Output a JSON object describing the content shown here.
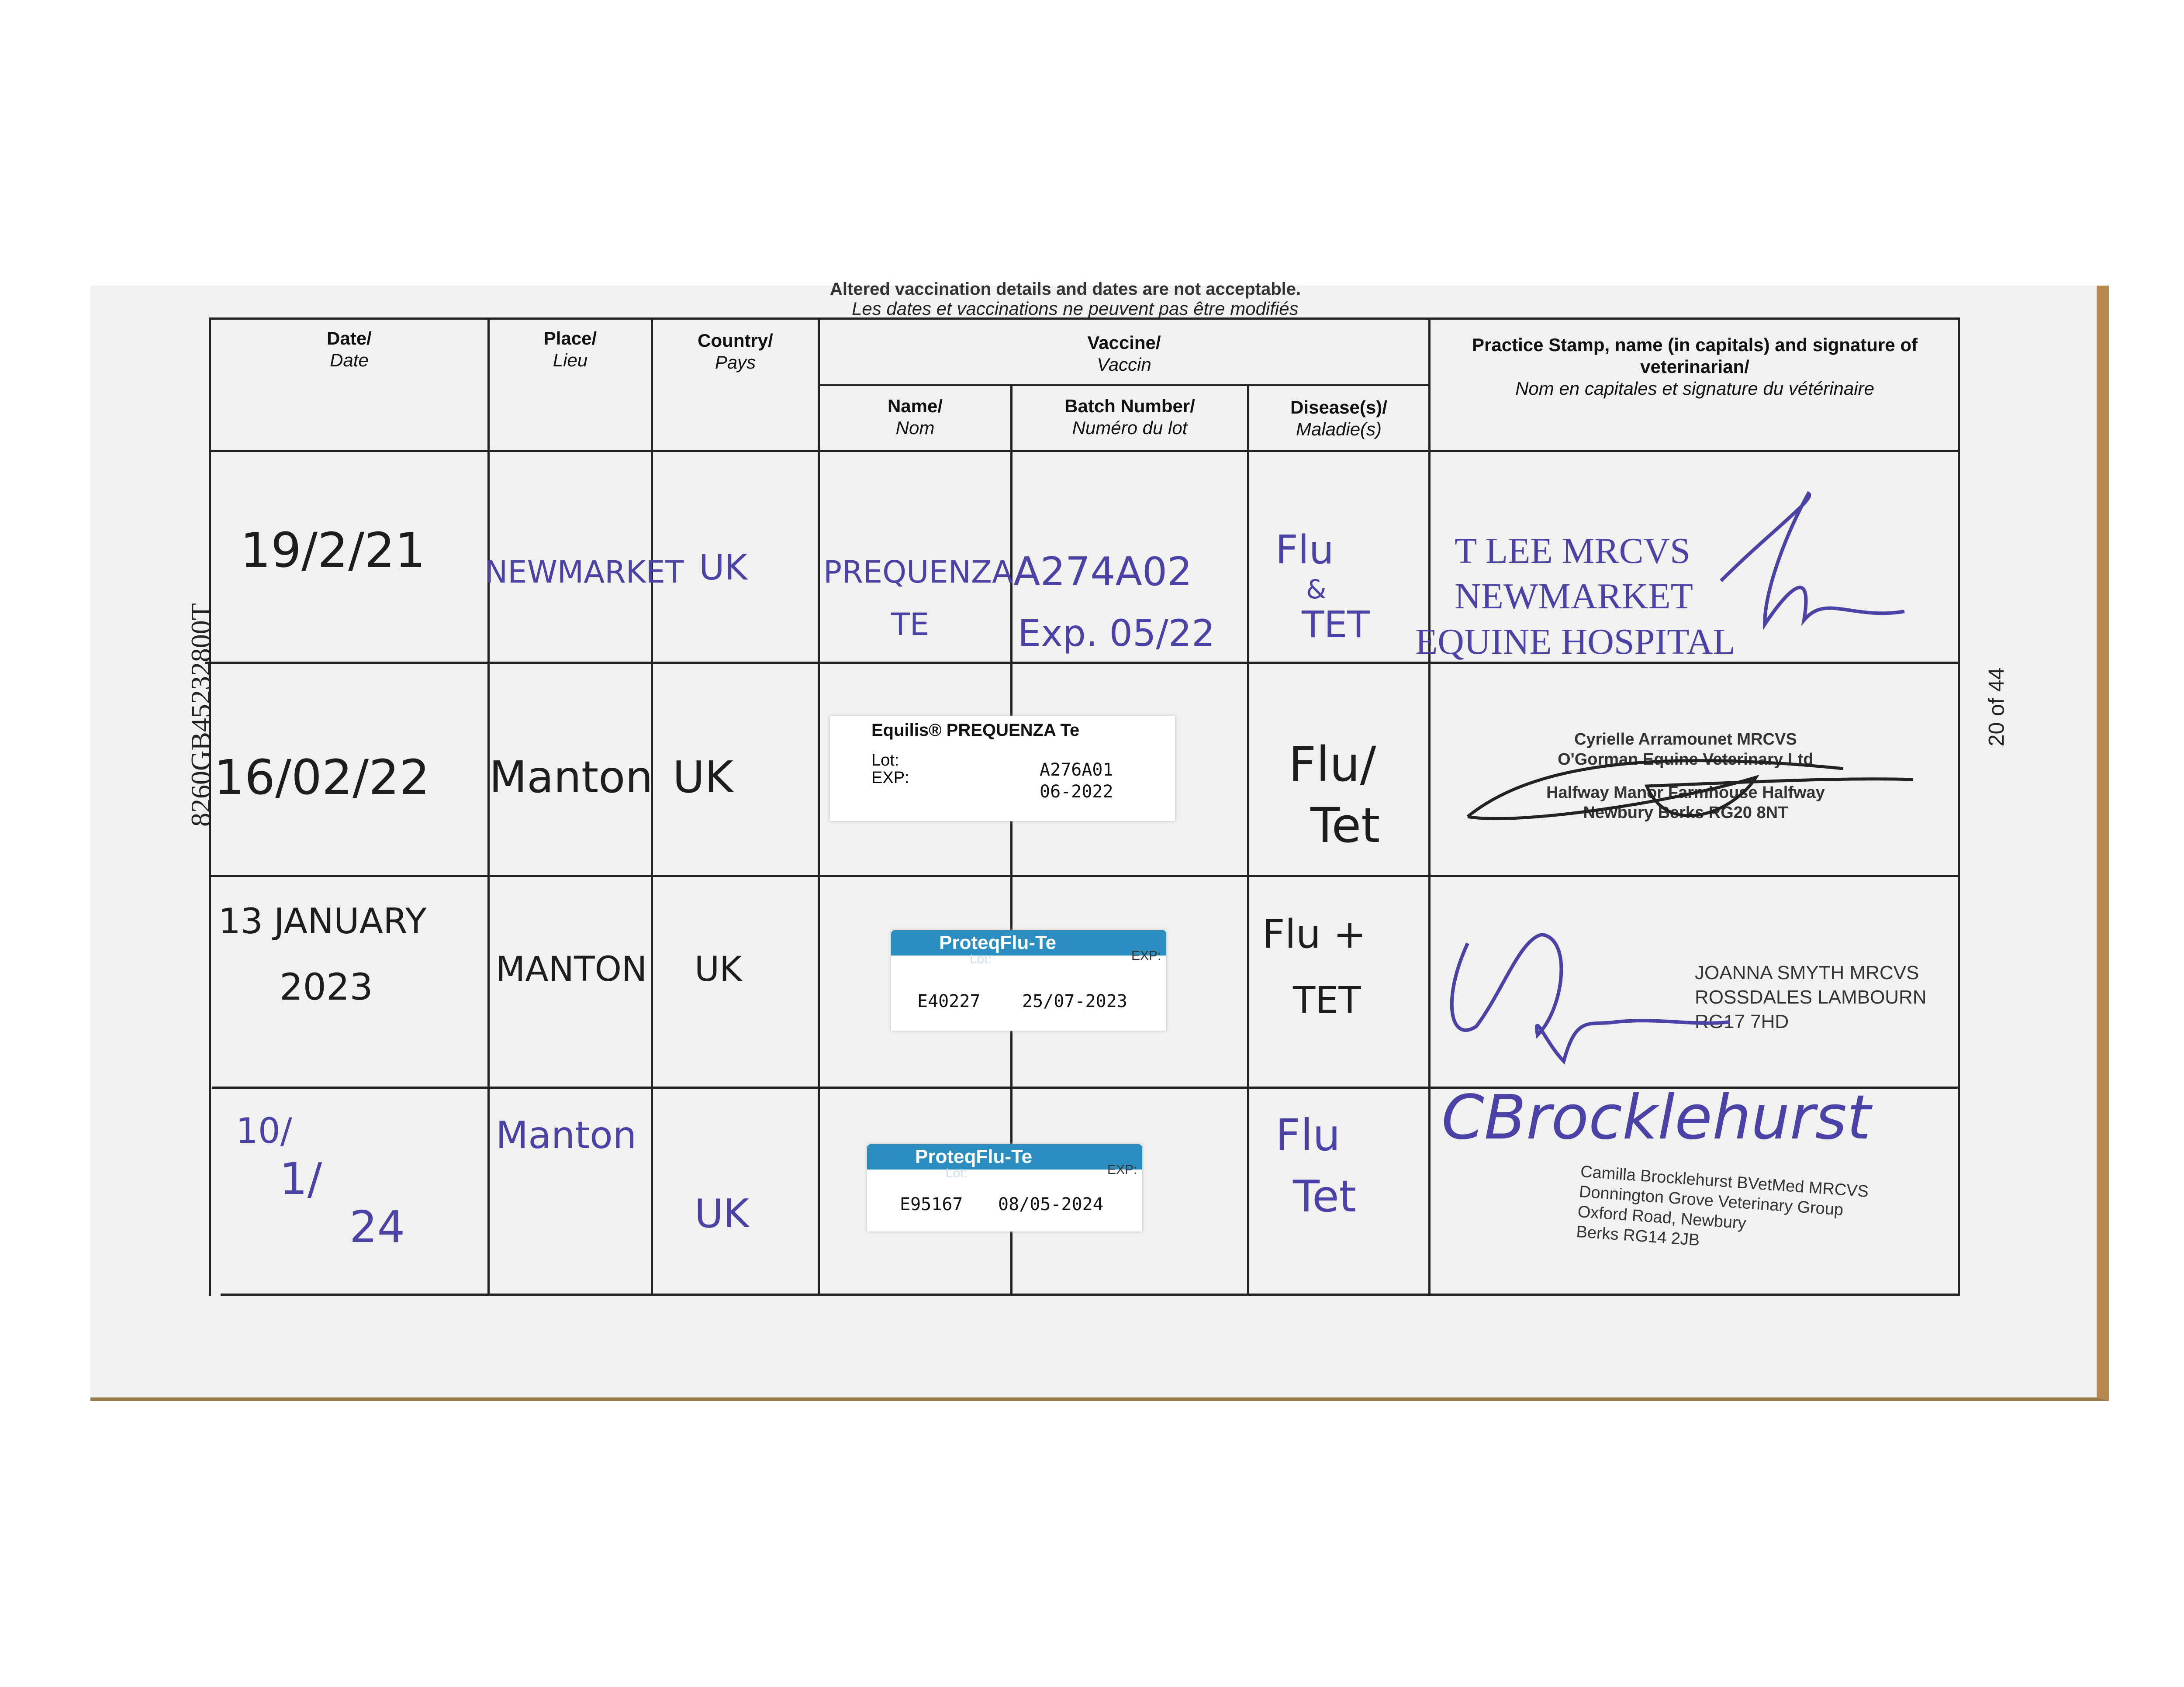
{
  "notice": {
    "en": "Altered vaccination details and dates are not acceptable.",
    "fr": "Les dates et vaccinations ne peuvent pas être modifiés"
  },
  "side_id": "8260GB45232800T",
  "page_label": "20 of 44",
  "headers": {
    "date": {
      "en": "Date/",
      "fr": "Date"
    },
    "place": {
      "en": "Place/",
      "fr": "Lieu"
    },
    "country": {
      "en": "Country/",
      "fr": "Pays"
    },
    "vaccine": {
      "en": "Vaccine/",
      "fr": "Vaccin"
    },
    "name": {
      "en": "Name/",
      "fr": "Nom"
    },
    "batch": {
      "en": "Batch Number/",
      "fr": "Numéro du lot"
    },
    "disease": {
      "en": "Disease(s)/",
      "fr": "Maladie(s)"
    },
    "stamp": {
      "en": "Practice Stamp, name (in capitals) and signature of veterinarian/",
      "fr": "Nom en capitales et signature du vétérinaire"
    }
  },
  "rows": [
    {
      "date": "19/2/21",
      "place": "NEWMARKET",
      "country": "UK",
      "name": [
        "PREQUENZA",
        "TE"
      ],
      "batch": [
        "A274A02",
        "Exp. 05/22"
      ],
      "disease": [
        "Flu",
        "&",
        "TET"
      ],
      "stamp": [
        "T LEE MRCVS",
        "NEWMARKET",
        "EQUINE HOSPITAL"
      ]
    },
    {
      "date": "16/02/22",
      "place": "Manton",
      "country": "UK",
      "sticker": {
        "brand": "Equilis® PREQUENZA Te",
        "lot_label": "Lot:",
        "exp_label": "EXP:",
        "lot": "A276A01",
        "exp": "06-2022"
      },
      "disease": [
        "Flu/",
        "Tet"
      ],
      "stamp": [
        "Cyrielle Arramounet MRCVS",
        "O'Gorman Equine Veterinary Ltd",
        "Halfway Manor Farmhouse Halfway",
        "Newbury Berks RG20 8NT"
      ]
    },
    {
      "date": [
        "13 JANUARY",
        "2023"
      ],
      "place": "MANTON",
      "country": "UK",
      "sticker": {
        "brand": "ProteqFlu-Te",
        "lot_label": "Lot:",
        "exp_label": "EXP:",
        "lot": "E40227",
        "exp": "25/07-2023"
      },
      "disease": [
        "Flu +",
        "TET"
      ],
      "stamp": [
        "JOANNA SMYTH MRCVS",
        "ROSSDALES LAMBOURN",
        "RG17 7HD"
      ]
    },
    {
      "date": [
        "10/",
        "1/",
        "24"
      ],
      "place": "Manton",
      "country": "UK",
      "sticker": {
        "brand": "ProteqFlu-Te",
        "lot_label": "Lot:",
        "exp_label": "EXP:",
        "lot": "E95167",
        "exp": "08/05-2024"
      },
      "disease": [
        "Flu",
        "Tet"
      ],
      "stamp": [
        "Camilla Brocklehurst BVetMed MRCVS",
        "Donnington Grove Veterinary Group",
        "Oxford Road, Newbury",
        "Berks RG14 2JB"
      ]
    }
  ],
  "colors": {
    "blue_ink": "#4b42a8",
    "black_ink": "#1d1d1d",
    "sticker_blue": "#2a8fc0"
  }
}
